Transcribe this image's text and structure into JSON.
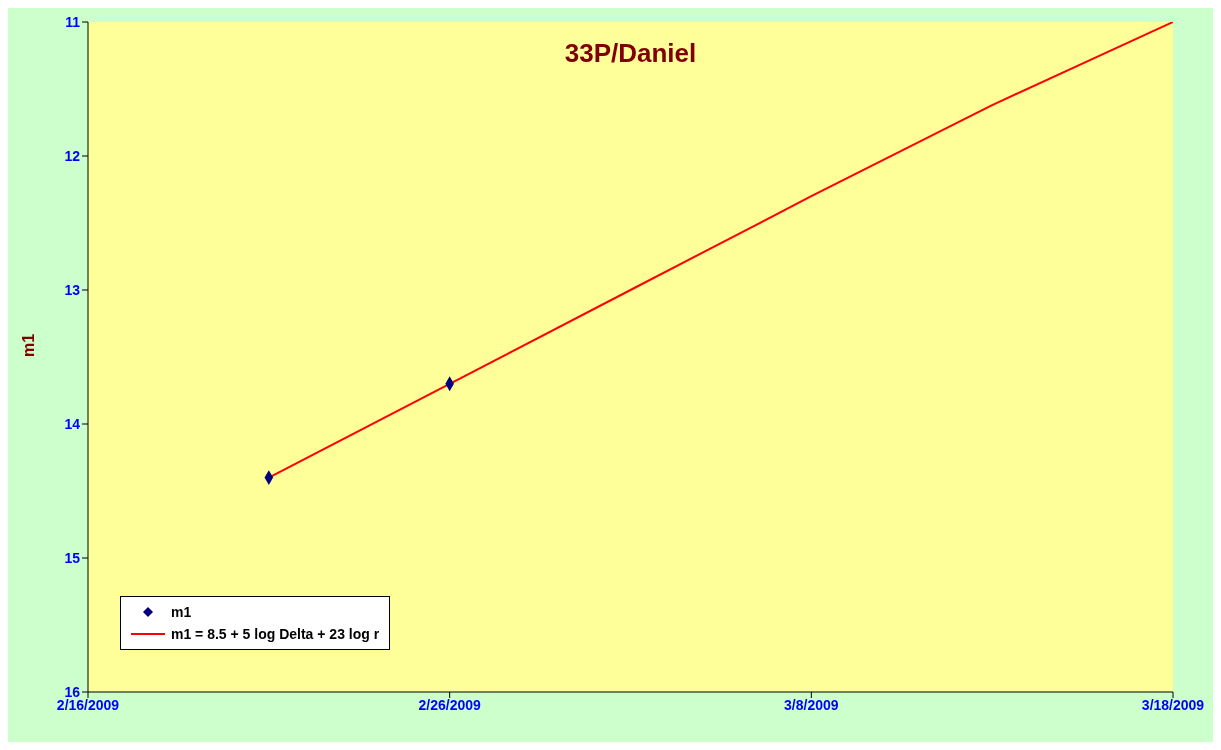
{
  "chart_data": {
    "type": "scatter",
    "title": "33P/Daniel",
    "ylabel": "m1",
    "series": [
      {
        "name": "m1",
        "color": "#000080",
        "marker": "diamond",
        "x": [
          "2009-02-21",
          "2009-02-26"
        ],
        "values": [
          14.4,
          13.7
        ]
      },
      {
        "name": "m1 = 8.5 + 5 log Delta + 23 log r",
        "type": "line",
        "color": "#ff0000",
        "marker": "none",
        "line_style": "solid",
        "x": [
          "2009-02-21",
          "2009-02-26",
          "2009-03-03",
          "2009-03-08",
          "2009-03-13",
          "2009-03-18"
        ],
        "values": [
          14.4,
          13.7,
          13.0,
          12.3,
          11.62,
          11.0
        ]
      }
    ],
    "xlim": [
      "2009-02-16",
      "2009-03-18"
    ],
    "xticks": [
      {
        "value": "2009-02-16",
        "label": "2/16/2009"
      },
      {
        "value": "2009-02-26",
        "label": "2/26/2009"
      },
      {
        "value": "2009-03-08",
        "label": "3/8/2009"
      },
      {
        "value": "2009-03-18",
        "label": "3/18/2009"
      }
    ],
    "ylim": [
      16,
      11
    ],
    "yticks": [
      11,
      12,
      13,
      14,
      15,
      16
    ],
    "grid": false,
    "legend": "bottom left"
  }
}
